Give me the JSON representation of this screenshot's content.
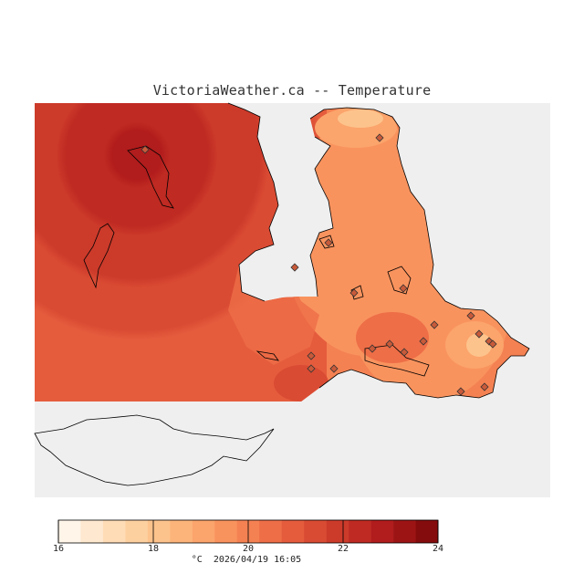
{
  "title": "VictoriaWeather.ca -- Temperature",
  "colorbar": {
    "min": 16,
    "max": 24,
    "step": 0.5,
    "tick_labels": [
      "16",
      "18",
      "20",
      "22",
      "24"
    ],
    "colors": [
      "#fff5e8",
      "#fee8cf",
      "#fedcb6",
      "#fdd0a0",
      "#fdc38c",
      "#fcb47a",
      "#fba46b",
      "#f9935e",
      "#f48152",
      "#ee6e47",
      "#e55c3d",
      "#da4b33",
      "#cc3a2a",
      "#bf2a22",
      "#b11c1c",
      "#9d1414",
      "#850c0c"
    ]
  },
  "footer": {
    "unit": "°C",
    "timestamp": "2026/04/19 16:05"
  },
  "map": {
    "background": "#efefef",
    "land_outline_color": "#000000",
    "station_marker": "diamond",
    "station_count": 20
  }
}
